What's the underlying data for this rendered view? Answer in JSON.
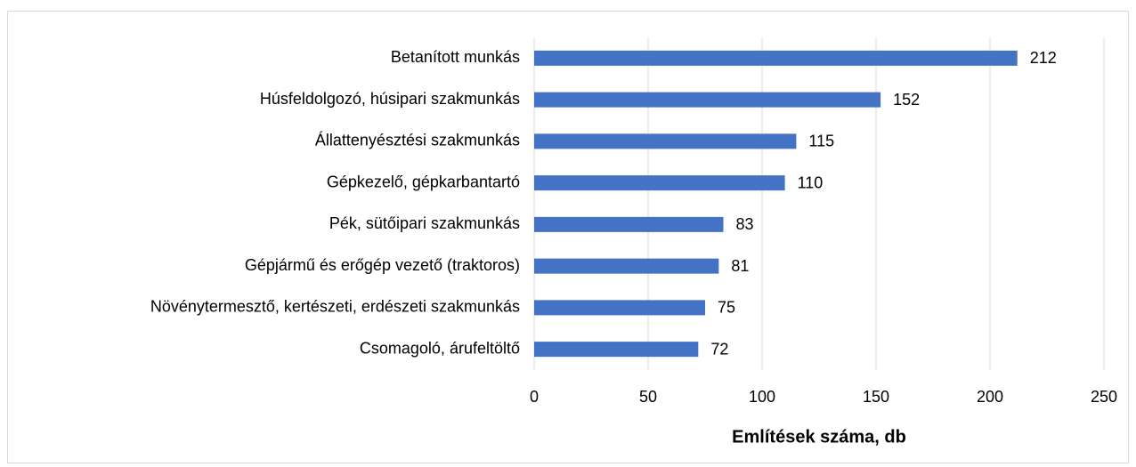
{
  "chart_data": {
    "type": "bar",
    "orientation": "horizontal",
    "x_label": "Említések száma, db",
    "categories": [
      "Betanított munkás",
      "Húsfeldolgozó, húsipari szakmunkás",
      "Állattenyésztési szakmunkás",
      "Gépkezelő, gépkarbantartó",
      "Pék, sütőipari szakmunkás",
      "Gépjármű és erőgép vezető (traktoros)",
      "Növénytermesztő, kertészeti, erdészeti szakmunkás",
      "Csomagoló, árufeltöltő"
    ],
    "values": [
      212,
      152,
      115,
      110,
      83,
      81,
      75,
      72
    ],
    "color": "#4472c4",
    "xlim": [
      0,
      250
    ],
    "xticks": [
      0,
      50,
      100,
      150,
      200,
      250
    ],
    "grid": true
  }
}
